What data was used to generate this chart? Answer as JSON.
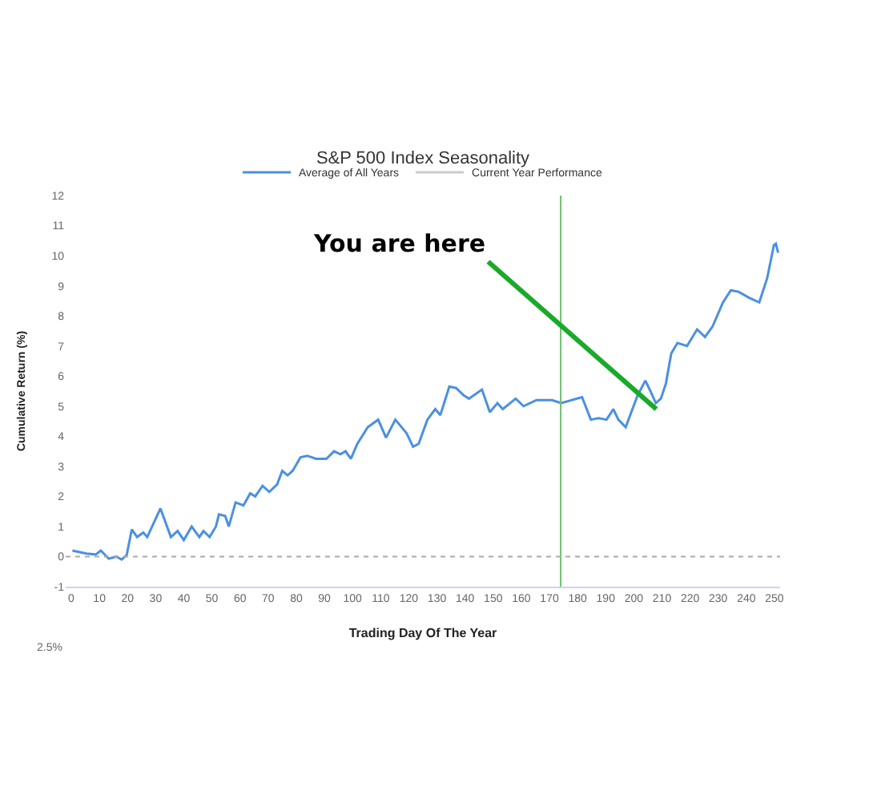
{
  "chart_data": {
    "type": "line",
    "title": "S&P 500 Index Seasonality",
    "xlabel": "Trading Day Of The Year",
    "ylabel": "Cumulative Return (%)",
    "series": [
      {
        "name": "Average of All Years",
        "color": "#4a90e2",
        "x": [
          0.4,
          5.4,
          8.7,
          10.5,
          13.3,
          16,
          17.9,
          19.7,
          21.5,
          23.4,
          25.6,
          27,
          31.7,
          35.4,
          37.8,
          40,
          42.8,
          45.5,
          47,
          49.2,
          51.4,
          52.5,
          54.7,
          56,
          58.4,
          61.2,
          63.6,
          65.4,
          68,
          70.4,
          73.2,
          75,
          76.9,
          78.7,
          81.5,
          83.9,
          87,
          90.7,
          93.4,
          95.7,
          97.5,
          99.4,
          101.7,
          105.4,
          109.1,
          111.9,
          115.2,
          119.2,
          121.5,
          123.5,
          126.6,
          129.4,
          131.2,
          134.4,
          136.8,
          139.6,
          141.4,
          146,
          148.8,
          151.5,
          153.4,
          158,
          160.8,
          165.4,
          170.9,
          174.2,
          181.6,
          184.7,
          187.5,
          190.3,
          192.7,
          194.5,
          197.1,
          201.3,
          204.1,
          205.9,
          207.8,
          209.6,
          211.4,
          213.3,
          215.5,
          218.9,
          222.5,
          225.3,
          228,
          231.7,
          234.5,
          237.3,
          241,
          244.6,
          247.4,
          249.8,
          250.5,
          251.3
        ],
        "values": [
          0.2,
          0.1,
          0.07,
          0.2,
          -0.07,
          0,
          -0.1,
          0.05,
          0.9,
          0.65,
          0.8,
          0.65,
          1.6,
          0.65,
          0.85,
          0.55,
          1.0,
          0.65,
          0.85,
          0.65,
          1.0,
          1.4,
          1.35,
          1.0,
          1.8,
          1.7,
          2.1,
          2.0,
          2.35,
          2.15,
          2.4,
          2.85,
          2.7,
          2.85,
          3.3,
          3.35,
          3.25,
          3.25,
          3.5,
          3.4,
          3.5,
          3.25,
          3.75,
          4.3,
          4.55,
          3.95,
          4.55,
          4.1,
          3.65,
          3.75,
          4.55,
          4.9,
          4.7,
          5.65,
          5.6,
          5.35,
          5.25,
          5.55,
          4.8,
          5.1,
          4.9,
          5.25,
          5.0,
          5.2,
          5.2,
          5.1,
          5.3,
          4.55,
          4.6,
          4.55,
          4.9,
          4.55,
          4.3,
          5.35,
          5.85,
          5.5,
          5.1,
          5.25,
          5.75,
          6.75,
          7.1,
          7.0,
          7.55,
          7.3,
          7.65,
          8.45,
          8.85,
          8.8,
          8.6,
          8.45,
          9.25,
          10.35,
          10.4,
          10.1
        ]
      },
      {
        "name": "Current Year Performance",
        "color": "#cccccc"
      }
    ],
    "xlim": [
      -2,
      252
    ],
    "xticks": [
      0,
      10,
      20,
      30,
      40,
      50,
      60,
      70,
      80,
      90,
      100,
      110,
      120,
      130,
      140,
      150,
      160,
      170,
      180,
      190,
      200,
      210,
      220,
      230,
      240,
      250
    ],
    "ylim": [
      -1,
      12
    ],
    "yticks": [
      -1,
      0,
      1,
      2,
      3,
      4,
      5,
      6,
      7,
      8,
      9,
      10,
      11,
      12
    ],
    "legend": "top",
    "ref_lines": [
      {
        "axis": "x",
        "value": 174,
        "color": "#6cc26c",
        "line_style": "solid"
      },
      {
        "axis": "y",
        "value": 0,
        "color": "#aaaaaa",
        "line_style": "dotted"
      }
    ],
    "annotations": [
      {
        "text": "You are here",
        "x": 208,
        "y": 4.9
      },
      "2.5%"
    ]
  }
}
